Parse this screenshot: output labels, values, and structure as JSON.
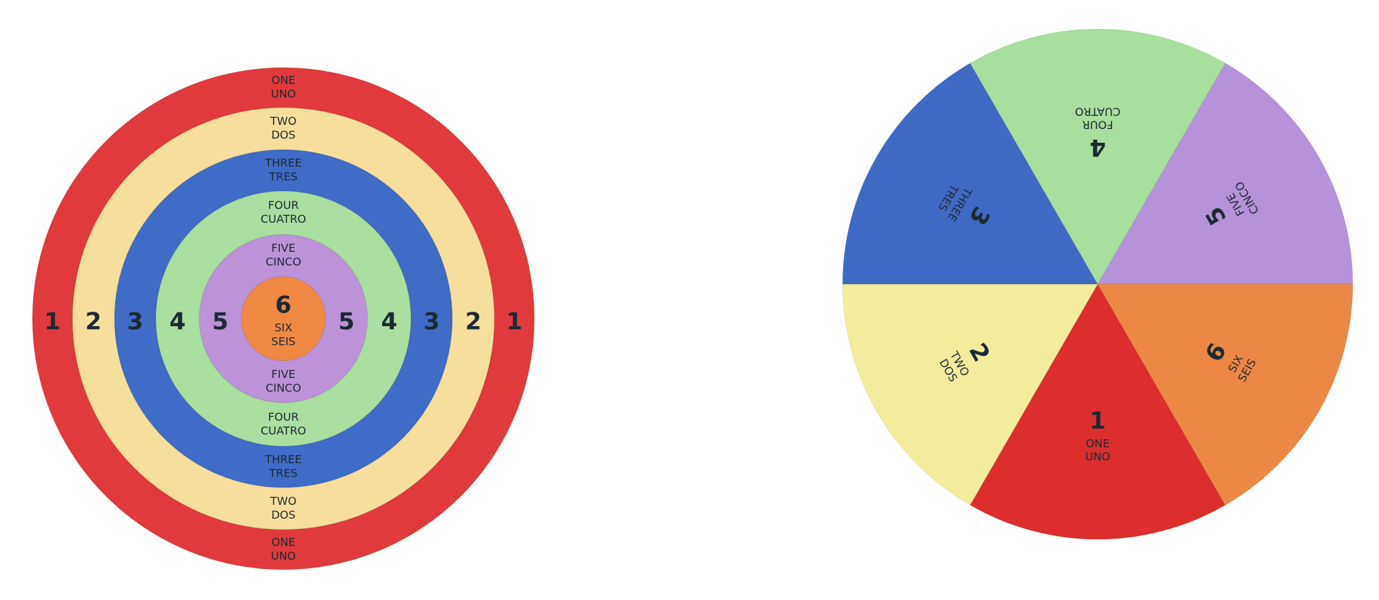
{
  "target": {
    "rings": [
      {
        "number": "1",
        "english": "ONE",
        "spanish": "UNO"
      },
      {
        "number": "2",
        "english": "TWO",
        "spanish": "DOS"
      },
      {
        "number": "3",
        "english": "THREE",
        "spanish": "TRES"
      },
      {
        "number": "4",
        "english": "FOUR",
        "spanish": "CUATRO"
      },
      {
        "number": "5",
        "english": "FIVE",
        "spanish": "CINCO"
      },
      {
        "number": "6",
        "english": "SIX",
        "spanish": "SEIS"
      }
    ]
  },
  "wheel": {
    "segments": [
      {
        "number": "1",
        "english": "ONE",
        "spanish": "UNO"
      },
      {
        "number": "2",
        "english": "TWO",
        "spanish": "DOS"
      },
      {
        "number": "3",
        "english": "THREE",
        "spanish": "TRES"
      },
      {
        "number": "4",
        "english": "FOUR",
        "spanish": "CUATRO"
      },
      {
        "number": "5",
        "english": "FIVE",
        "spanish": "CINCO"
      },
      {
        "number": "6",
        "english": "SIX",
        "spanish": "SEIS"
      }
    ]
  }
}
